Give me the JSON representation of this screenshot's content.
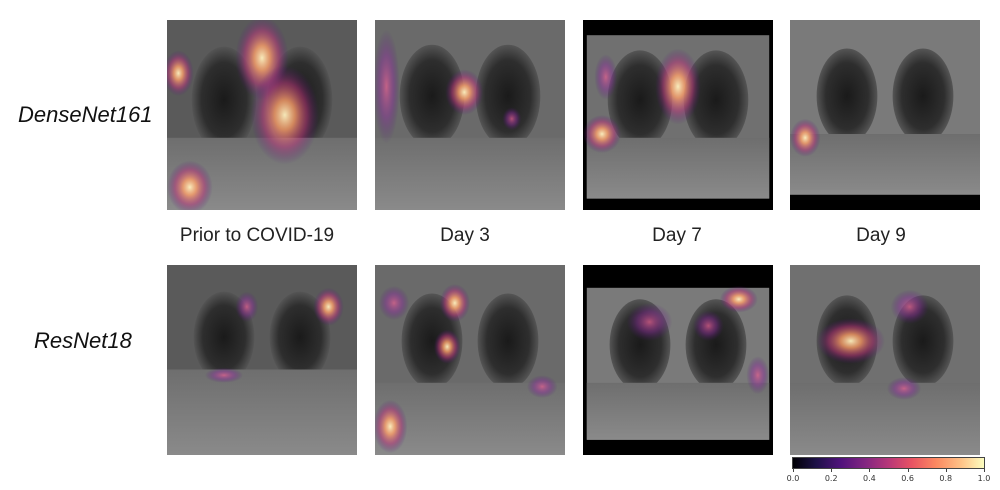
{
  "rows": [
    {
      "label": "DenseNet161"
    },
    {
      "label": "ResNet18"
    }
  ],
  "columns": [
    {
      "label": "Prior to COVID-19"
    },
    {
      "label": "Day 3"
    },
    {
      "label": "Day 7"
    },
    {
      "label": "Day 9"
    }
  ],
  "colorbar": {
    "colormap": "magma",
    "ticks": [
      "0.0",
      "0.2",
      "0.4",
      "0.6",
      "0.8",
      "1.0"
    ]
  }
}
